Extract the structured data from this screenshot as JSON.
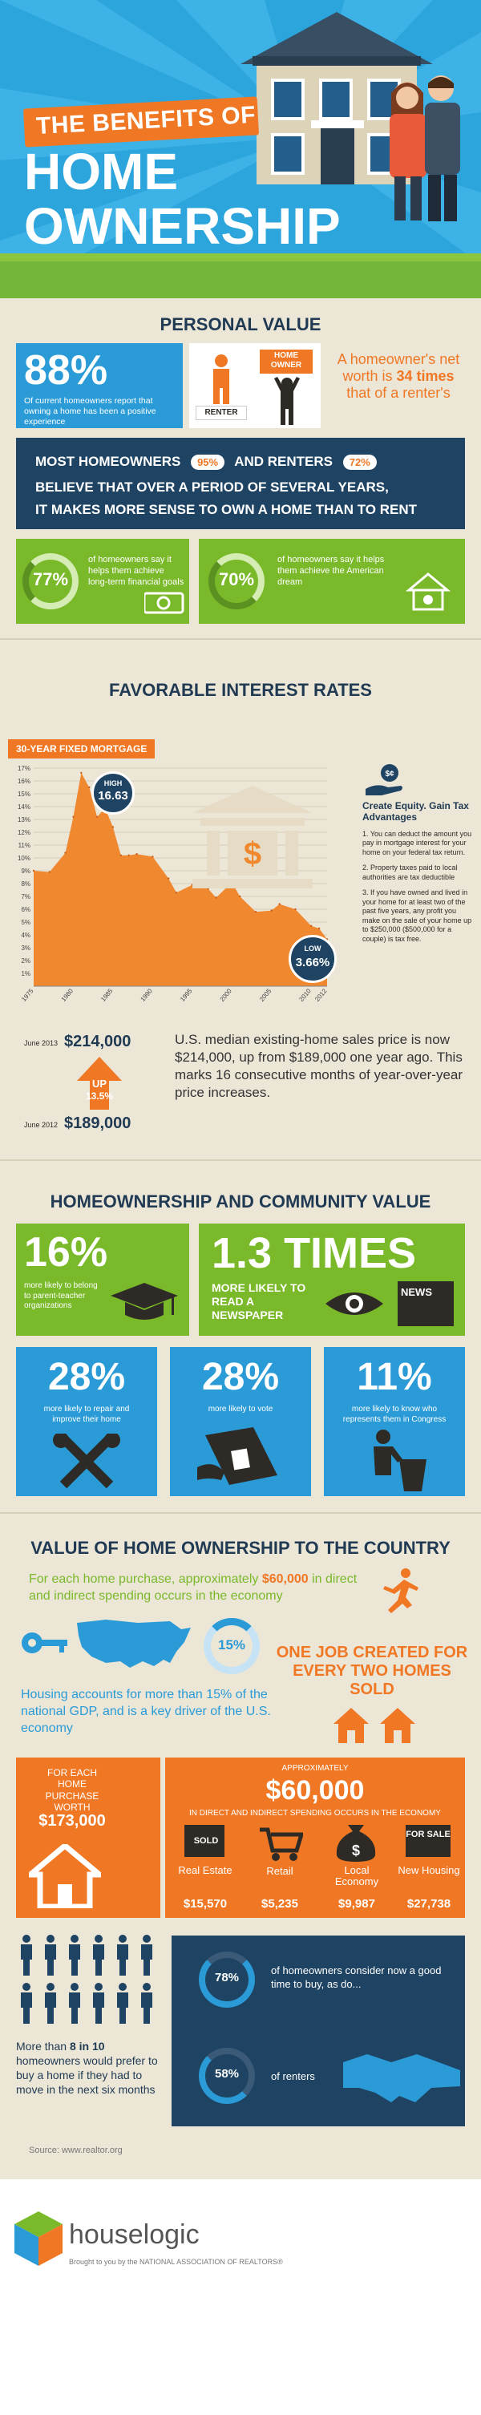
{
  "header": {
    "title_line1": "THE BENEFITS OF",
    "title_line2": "HOME",
    "title_line3": "OWNERSHIP"
  },
  "personal": {
    "heading": "PERSONAL VALUE",
    "stat1_value": "88%",
    "stat1_text": "Of current homeowners report that owning a home has been a positive experience",
    "renter_label": "RENTER",
    "owner_label": "HOME OWNER",
    "networth_text1": "A homeowner's net worth is",
    "networth_highlight": "34 times",
    "networth_text2": "that of a renter's",
    "banner_line1a": "MOST HOMEOWNERS",
    "banner_pct1": "95%",
    "banner_line1b": "AND RENTERS",
    "banner_pct2": "72%",
    "banner_line2": "BELIEVE THAT OVER A PERIOD OF SEVERAL YEARS,",
    "banner_line3": "IT MAKES MORE SENSE TO OWN A HOME THAN TO RENT",
    "g1_value": "77%",
    "g1_text": "of homeowners say it helps them achieve long-term financial goals",
    "g2_value": "70%",
    "g2_text": "of homeowners say it helps them achieve the American dream"
  },
  "rates": {
    "heading": "FAVORABLE INTEREST RATES",
    "chart_label": "30-YEAR FIXED MORTGAGE",
    "high_label": "HIGH",
    "high_value": "16.63",
    "low_label": "LOW",
    "low_value": "3.66%",
    "equity_title": "Create Equity. Gain Tax Advantages",
    "equity_p1": "1. You can deduct the amount you pay in mortgage interest for your home on your federal tax return.",
    "equity_p2": "2. Property taxes paid to local authorities are tax deductible",
    "equity_p3": "3. If you have owned and lived in your home for at least two of the past five years, any profit you make on the sale of your home up to $250,000 ($500,000 for a couple) is tax free.",
    "price_date1": "June 2013",
    "price_value1": "$214,000",
    "up_label": "UP",
    "up_pct": "13.5%",
    "price_date2": "June 2012",
    "price_value2": "$189,000",
    "price_text": "U.S. median existing-home sales price is now $214,000, up from $189,000 one year ago. This marks 16 consecutive months of year-over-year price increases."
  },
  "chart_data": {
    "type": "area",
    "title": "30-YEAR FIXED MORTGAGE",
    "x": [
      1975,
      1977,
      1979,
      1980,
      1981,
      1982,
      1983,
      1984,
      1985,
      1986,
      1987,
      1988,
      1990,
      1992,
      1993,
      1995,
      1997,
      1998,
      2000,
      2001,
      2003,
      2005,
      2006,
      2008,
      2010,
      2011,
      2012
    ],
    "values": [
      9.0,
      8.9,
      10.4,
      13.2,
      16.63,
      15.5,
      13.2,
      13.9,
      12.4,
      10.2,
      10.2,
      10.3,
      10.1,
      8.4,
      7.3,
      7.9,
      7.6,
      6.9,
      8.1,
      7.0,
      5.8,
      5.9,
      6.4,
      6.0,
      4.7,
      4.5,
      3.66
    ],
    "xticks": [
      "1975",
      "1980",
      "1985",
      "1990",
      "1995",
      "2000",
      "2005",
      "2010",
      "2012"
    ],
    "yticks": [
      "1%",
      "2%",
      "3%",
      "4%",
      "5%",
      "6%",
      "7%",
      "8%",
      "9%",
      "10%",
      "11%",
      "12%",
      "13%",
      "14%",
      "15%",
      "16%",
      "17%"
    ],
    "ylim": [
      0,
      17
    ],
    "xlim": [
      1975,
      2012
    ],
    "color": "#f0882f"
  },
  "community": {
    "heading": "HOMEOWNERSHIP AND COMMUNITY VALUE",
    "s1_value": "16%",
    "s1_text": "more likely to belong to parent-teacher organizations",
    "s2_value": "1.3 TIMES",
    "s2_text": "MORE LIKELY TO READ A NEWSPAPER",
    "news_label": "NEWS",
    "s3_value": "28%",
    "s3_text": "more likely to repair and improve their home",
    "s4_value": "28%",
    "s4_text": "more likely to vote",
    "s5_value": "11%",
    "s5_text": "more likely to know who represents them in Congress"
  },
  "country": {
    "heading": "VALUE OF HOME OWNERSHIP TO THE COUNTRY",
    "spend_text_a": "For each home purchase, approximately",
    "spend_amount": "$60,000",
    "spend_text_b": "in direct and indirect spending occurs in the economy",
    "gdp_pct": "15%",
    "gdp_text": "Housing accounts for more than 15% of the national GDP, and is a key driver of the U.S. economy",
    "jobs_text": "ONE JOB CREATED FOR EVERY TWO HOMES SOLD",
    "purchase_label": "FOR EACH HOME PURCHASE WORTH",
    "purchase_value": "$173,000",
    "approx_label": "APPROXIMATELY",
    "approx_value": "$60,000",
    "approx_sub": "IN DIRECT AND INDIRECT SPENDING OCCURS IN THE ECONOMY",
    "cat1_label": "Real Estate",
    "cat1_value": "$15,570",
    "sold_label": "SOLD",
    "cat2_label": "Retail",
    "cat2_value": "$5,235",
    "cat3_label": "Local Economy",
    "cat3_value": "$9,987",
    "cat4_label": "New Housing",
    "cat4_value": "$27,738",
    "forsale_label": "FOR SALE",
    "people_text_a": "More than",
    "people_highlight": "8 in 10",
    "people_text_b": "homeowners would prefer to buy a home if they had to move in the next six months",
    "good1_value": "78%",
    "good1_text": "of homeowners consider now a good time to buy, as do...",
    "good2_value": "58%",
    "good2_text": "of renters",
    "source": "Source: www.realtor.org"
  },
  "footer": {
    "brand": "houselogic",
    "tagline": "Brought to you by the NATIONAL ASSOCIATION OF REALTORS®"
  },
  "colors": {
    "navy": "#1f4463",
    "blue": "#2a9bd7",
    "green": "#7ab929",
    "orange": "#f07824",
    "cream": "#ece6d7"
  }
}
